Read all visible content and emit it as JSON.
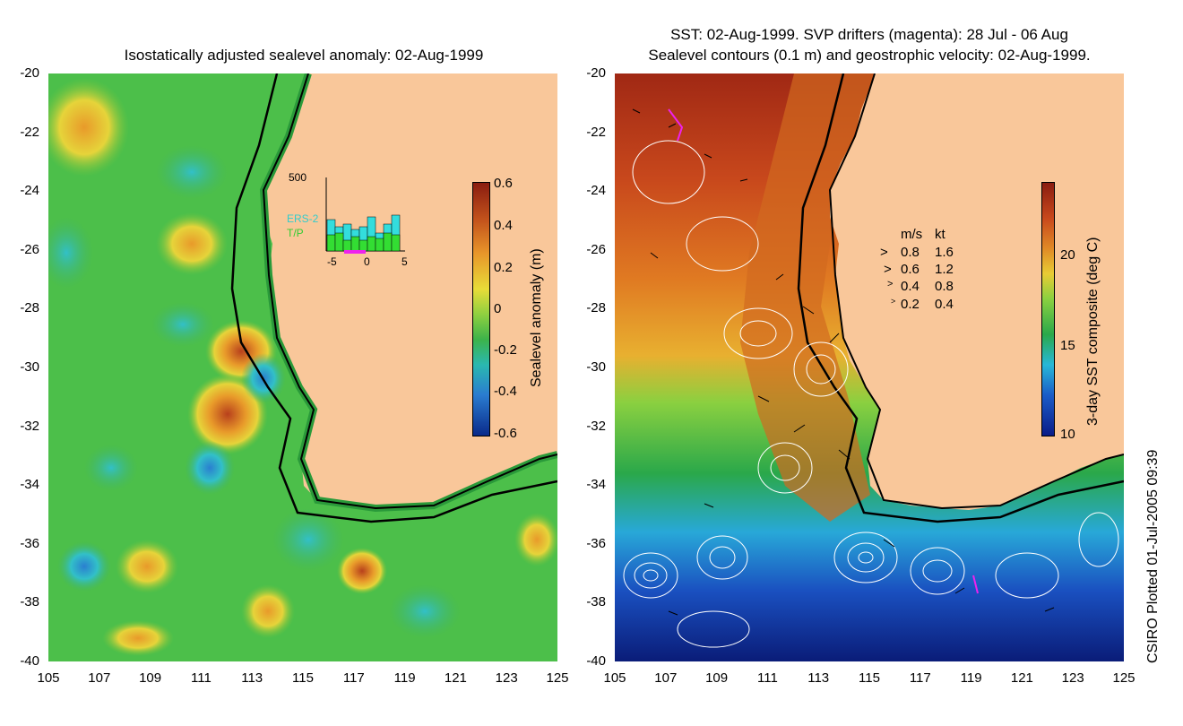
{
  "left_panel": {
    "title": "Isostatically adjusted sealevel anomaly: 02-Aug-1999",
    "colorbar": {
      "label": "Sealevel anomaly (m)",
      "ticks": [
        "0.6",
        "0.4",
        "0.2",
        "0",
        "-0.2",
        "-0.4",
        "-0.6"
      ],
      "range": [
        -0.6,
        0.6
      ]
    },
    "inset": {
      "ymax_label": "500",
      "x_ticks": [
        "-5",
        "0",
        "5"
      ],
      "legend": [
        {
          "label": "ERS-2",
          "color": "#33cccc"
        },
        {
          "label": "T/P",
          "color": "#33cc33"
        }
      ]
    }
  },
  "right_panel": {
    "title_line1": "SST: 02-Aug-1999. SVP drifters (magenta): 28 Jul - 06 Aug",
    "title_line2": "Sealevel contours (0.1 m) and geostrophic velocity: 02-Aug-1999.",
    "colorbar": {
      "label": "3-day SST composite (deg C)",
      "ticks": [
        "20",
        "15",
        "10"
      ],
      "range": [
        10,
        24
      ]
    },
    "velocity_legend": {
      "header_ms": "m/s",
      "header_kt": "kt",
      "rows": [
        {
          "ms": "0.8",
          "kt": "1.6"
        },
        {
          "ms": "0.6",
          "kt": "1.2"
        },
        {
          "ms": "0.4",
          "kt": "0.8"
        },
        {
          "ms": "0.2",
          "kt": "0.4"
        }
      ]
    }
  },
  "axes": {
    "x_ticks": [
      "105",
      "107",
      "109",
      "111",
      "113",
      "115",
      "117",
      "119",
      "121",
      "123",
      "125"
    ],
    "y_ticks": [
      "-20",
      "-22",
      "-24",
      "-26",
      "-28",
      "-30",
      "-32",
      "-34",
      "-36",
      "-38",
      "-40"
    ],
    "lon_range": [
      105,
      125
    ],
    "lat_range": [
      -40,
      -20
    ]
  },
  "credit": "CSIRO Plotted 01-Jul-2005 09:39",
  "colors": {
    "land": "#f9c79a",
    "coast": "#000000"
  }
}
